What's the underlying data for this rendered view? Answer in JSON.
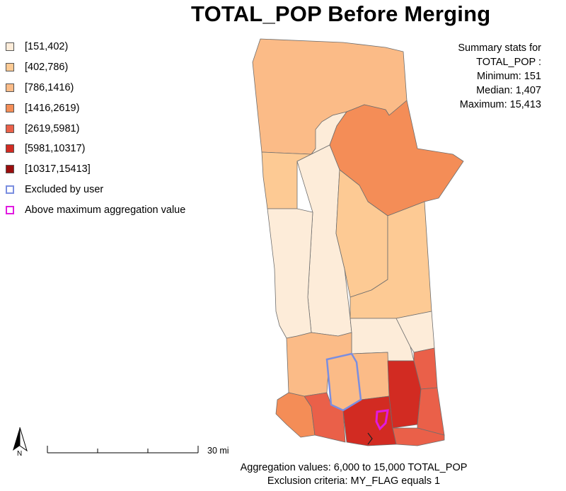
{
  "title": "TOTAL_POP Before Merging",
  "legend": [
    {
      "label": "[151,402)",
      "color": "#fdecd9",
      "border": "#555555"
    },
    {
      "label": "[402,786)",
      "color": "#fdca94",
      "border": "#555555"
    },
    {
      "label": "[786,1416)",
      "color": "#fbbb87",
      "border": "#555555"
    },
    {
      "label": "[1416,2619)",
      "color": "#f48d57",
      "border": "#555555"
    },
    {
      "label": "[2619,5981)",
      "color": "#ea6049",
      "border": "#555555"
    },
    {
      "label": "[5981,10317)",
      "color": "#d22b22",
      "border": "#555555"
    },
    {
      "label": "[10317,15413]",
      "color": "#9b0d0d",
      "border": "#555555"
    },
    {
      "label": "Excluded by user",
      "color": "#ffffff",
      "border": "#7a8ee0"
    },
    {
      "label": "Above maximum aggregation value",
      "color": "#ffffff",
      "border": "#e11ae0"
    }
  ],
  "stats": {
    "heading1": "Summary stats for",
    "heading2": "TOTAL_POP :",
    "min": "Minimum: 151",
    "median": "Median: 1,407",
    "max": "Maximum: 15,413"
  },
  "scale": {
    "label": "30 mi"
  },
  "north_arrow": {
    "label": "N",
    "icon": "north-arrow-icon"
  },
  "footer": {
    "line1": "Aggregation values: 6,000 to 15,000 TOTAL_POP",
    "line2": "Exclusion criteria:  MY_FLAG equals 1"
  },
  "colors": {
    "c1": "#fdecd9",
    "c2": "#fdca94",
    "c3": "#fbbb87",
    "c4": "#f48d57",
    "c5": "#ea6049",
    "c6": "#d22b22",
    "c7": "#9b0d0d",
    "excluded": "#7a8ee0",
    "above_max": "#e11ae0",
    "outline": "#6e6e6e"
  }
}
